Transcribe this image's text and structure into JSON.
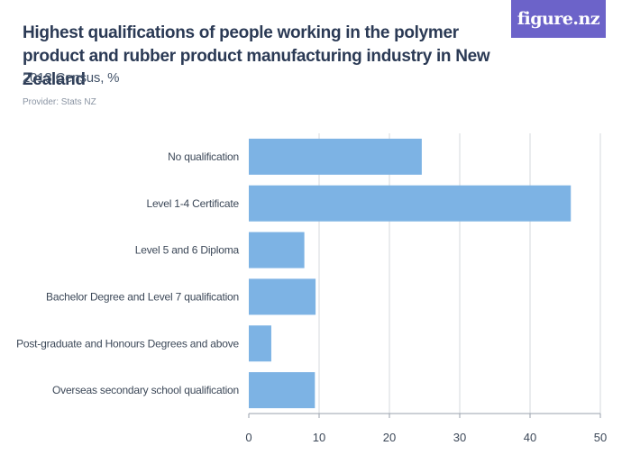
{
  "header": {
    "title": "Highest qualifications of people working in the polymer product and rubber product manufacturing industry in New Zealand",
    "subtitle": "2013 Census, %",
    "provider": "Provider: Stats NZ",
    "logo_text": "figure.nz"
  },
  "colors": {
    "bar": "#7db3e4",
    "grid": "#d6d9de",
    "axis": "#9aa2ad",
    "logo_bg": "#6c63c9"
  },
  "chart_data": {
    "type": "bar",
    "orientation": "horizontal",
    "categories": [
      "No qualification",
      "Level 1-4 Certificate",
      "Level 5 and 6 Diploma",
      "Bachelor Degree and Level 7 qualification",
      "Post-graduate and Honours Degrees and above",
      "Overseas secondary school qualification"
    ],
    "values": [
      24.6,
      45.8,
      7.9,
      9.5,
      3.2,
      9.4
    ],
    "xlim": [
      0,
      50
    ],
    "xticks": [
      "0",
      "10",
      "20",
      "30",
      "40",
      "50"
    ],
    "grid": true
  }
}
